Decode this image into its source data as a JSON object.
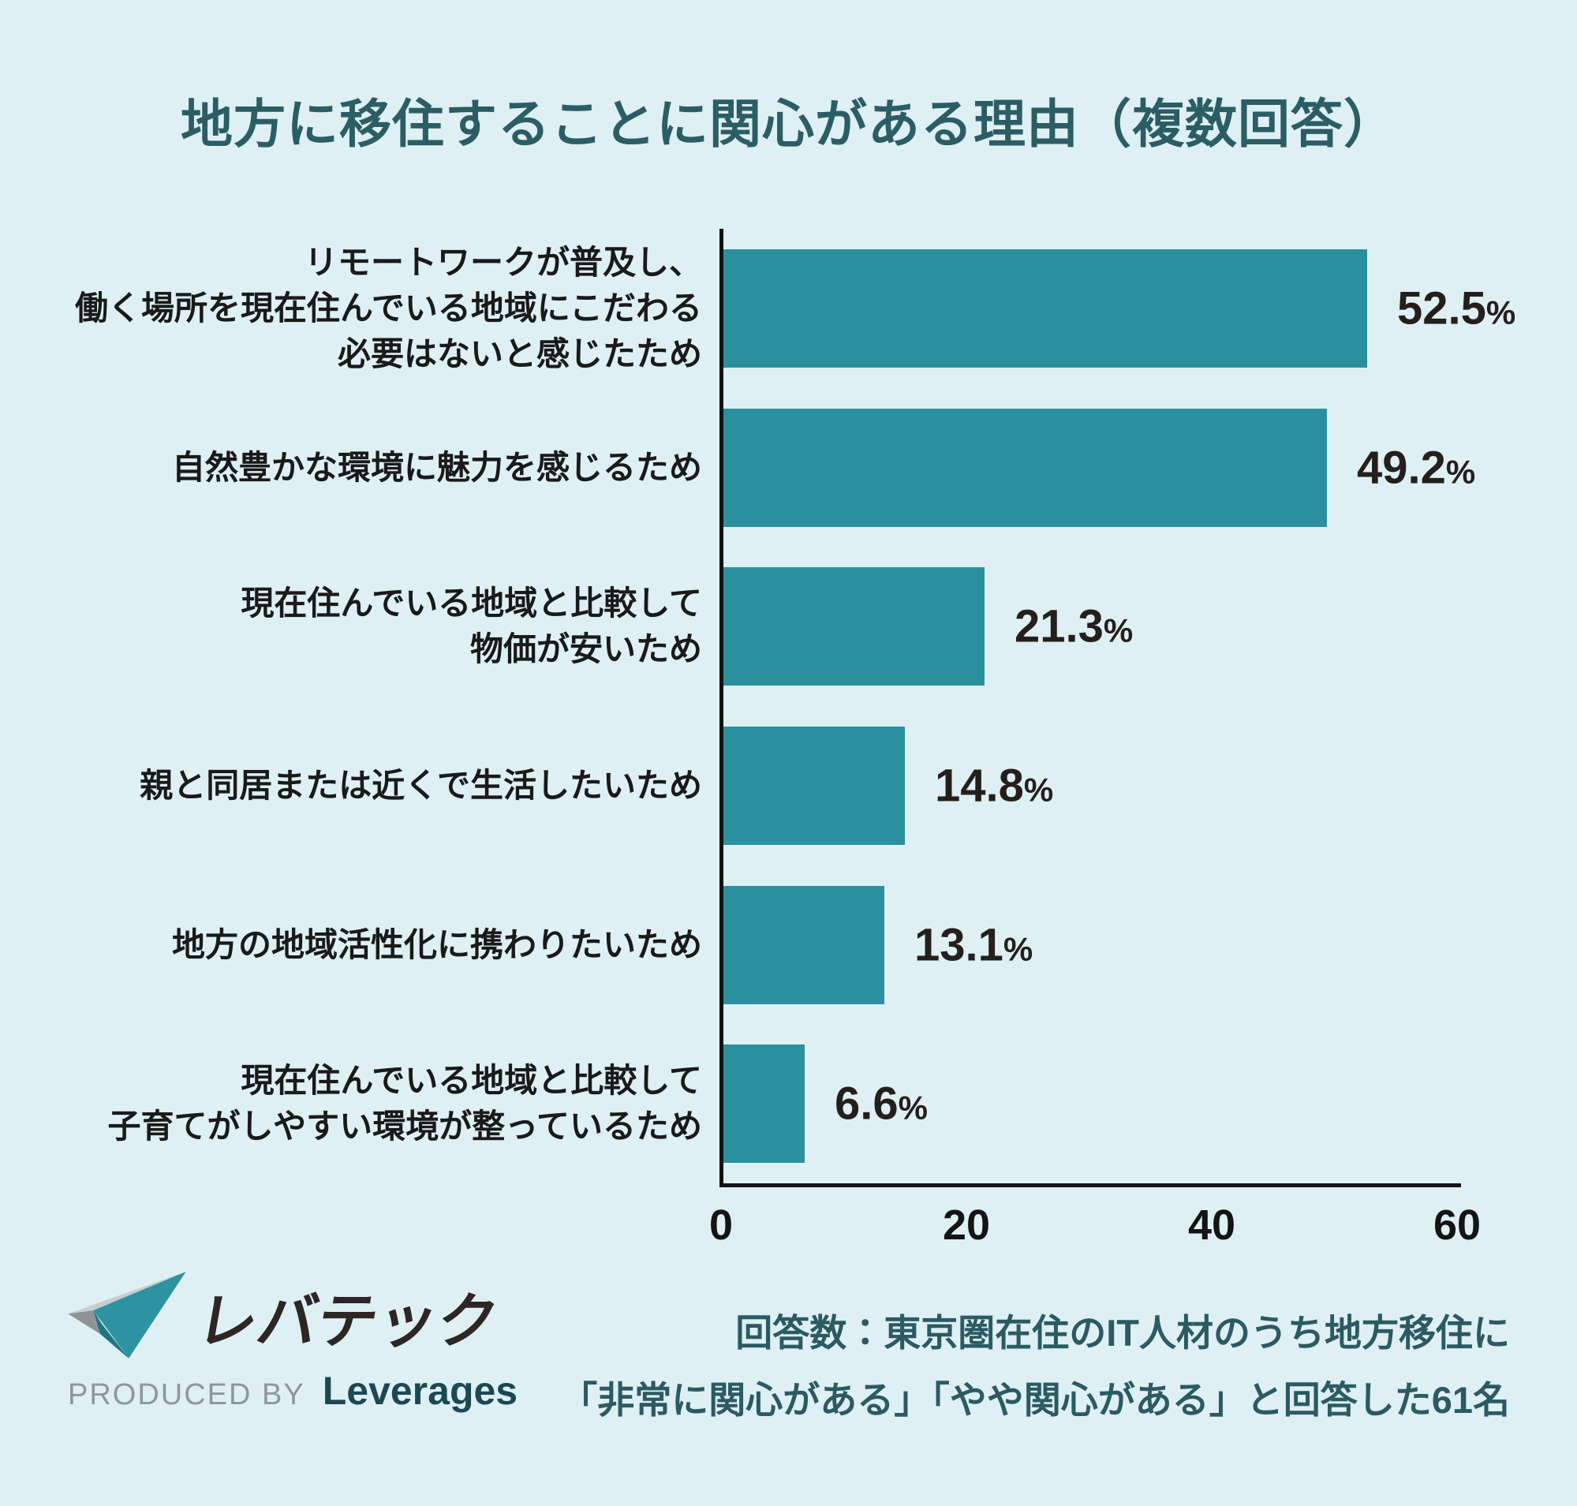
{
  "title": "地方に移住することに関心がある理由（複数回答）",
  "chart_data": {
    "type": "bar",
    "orientation": "horizontal",
    "title": "地方に移住することに関心がある理由（複数回答）",
    "xlabel": "",
    "ylabel": "",
    "xlim": [
      0,
      60
    ],
    "x_ticks": [
      "0",
      "20",
      "40",
      "60"
    ],
    "unit": "%",
    "grid": false,
    "legend": "none",
    "rows": [
      {
        "label_lines": [
          "リモートワークが普及し、",
          "働く場所を現在住んでいる地域にこだわる",
          "必要はないと感じたため"
        ],
        "value": 52.5,
        "display": "52.5",
        "suffix": "%"
      },
      {
        "label_lines": [
          "自然豊かな環境に魅力を感じるため"
        ],
        "value": 49.2,
        "display": "49.2",
        "suffix": "%"
      },
      {
        "label_lines": [
          "現在住んでいる地域と比較して",
          "物価が安いため"
        ],
        "value": 21.3,
        "display": "21.3",
        "suffix": "%"
      },
      {
        "label_lines": [
          "親と同居または近くで生活したいため"
        ],
        "value": 14.8,
        "display": "14.8",
        "suffix": "%"
      },
      {
        "label_lines": [
          "地方の地域活性化に携わりたいため"
        ],
        "value": 13.1,
        "display": "13.1",
        "suffix": "%"
      },
      {
        "label_lines": [
          "現在住んでいる地域と比較して",
          "子育てがしやすい環境が整っているため"
        ],
        "value": 6.6,
        "display": "6.6",
        "suffix": "%"
      }
    ]
  },
  "footer": {
    "logo": {
      "brand": "レバテック",
      "produced_by": "PRODUCED BY",
      "company": "Leverages",
      "mark_icon": "leverages-check-mark"
    },
    "note_lines": [
      "回答数：東京圏在住のIT人材のうち地方移住に",
      "「非常に関心がある」「やや関心がある」と回答した61名"
    ]
  },
  "colors": {
    "background": "#def0f4",
    "bar": "#2a909d",
    "title_text": "#2b5d65",
    "note_text": "#2b5a62",
    "label_text": "#1a1a1a",
    "value_text": "#251f1c",
    "axis": "#141414",
    "logo_text": "#2e2624",
    "produced_by_text": "#8f9699",
    "company_text": "#1d4753",
    "mark_teal": "#2e93a0",
    "mark_teal_dark": "#1f7683",
    "mark_gray_light": "#c9cdce",
    "mark_gray_dark": "#8e9496"
  }
}
